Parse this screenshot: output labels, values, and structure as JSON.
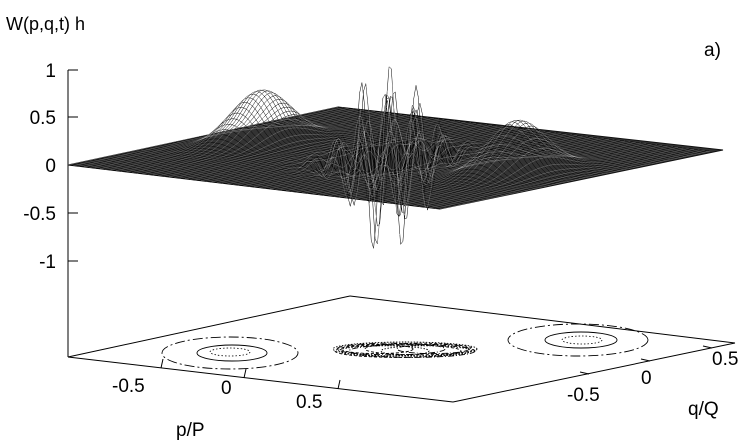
{
  "chart_data": {
    "type": "surface",
    "panel_label": "a)",
    "zlabel": "W(p,q,t) h",
    "xlabel": "p/P",
    "ylabel": "q/Q",
    "zticks": [
      "1",
      "0.5",
      "0",
      "-0.5",
      "-1"
    ],
    "xticks": [
      "-0.5",
      "0",
      "0.5"
    ],
    "yticks": [
      "-0.5",
      "0",
      "0.5"
    ],
    "zlim": [
      -1,
      1
    ],
    "xlim": [
      -0.8,
      0.8
    ],
    "ylim": [
      -0.8,
      0.8
    ],
    "components": [
      {
        "name": "left peak",
        "p": -0.55,
        "q": 0.0,
        "height": 0.55,
        "sign": "positive"
      },
      {
        "name": "right peak",
        "p": 0.55,
        "q": 0.0,
        "height": 0.55,
        "sign": "positive"
      },
      {
        "name": "central interference",
        "p": 0.0,
        "q": 0.0,
        "height": 0.95,
        "min": -0.75,
        "sign": "oscillating"
      }
    ],
    "base_contours": true,
    "grid": false
  }
}
